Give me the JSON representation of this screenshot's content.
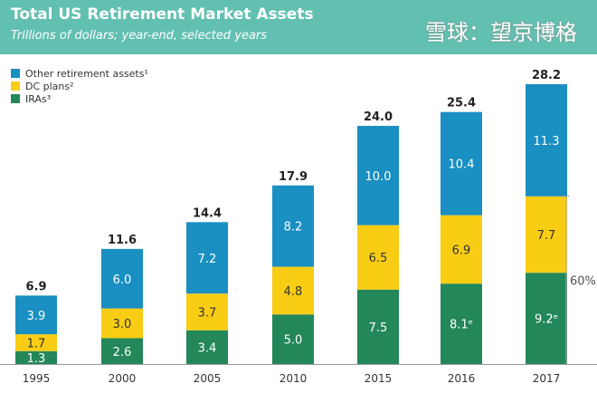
{
  "header": {
    "title": "Total US Retirement Market Assets",
    "subtitle": "Trillions of dollars; year-end, selected years"
  },
  "colors": {
    "header": "#62c0b1",
    "other": "#1a8fc1",
    "dc": "#f8cd14",
    "ira": "#23875a"
  },
  "watermark": "雪球：望京博格",
  "chart_data": {
    "type": "bar",
    "stacked": true,
    "title": "Total US Retirement Market Assets",
    "subtitle": "Trillions of dollars; year-end, selected years",
    "categories": [
      "1995",
      "2000",
      "2005",
      "2010",
      "2015",
      "2016",
      "2017"
    ],
    "series": [
      {
        "name": "IRAs³",
        "key": "ira",
        "values": [
          1.3,
          2.6,
          3.4,
          5.0,
          7.5,
          8.1,
          9.2
        ],
        "labels": [
          "1.3",
          "2.6",
          "3.4",
          "5.0",
          "7.5",
          "8.1ᵉ",
          "9.2ᵉ"
        ]
      },
      {
        "name": "DC plans²",
        "key": "dc",
        "values": [
          1.7,
          3.0,
          3.7,
          4.8,
          6.5,
          6.9,
          7.7
        ],
        "labels": [
          "1.7",
          "3.0",
          "3.7",
          "4.8",
          "6.5",
          "6.9",
          "7.7"
        ]
      },
      {
        "name": "Other retirement assets¹",
        "key": "other",
        "values": [
          3.9,
          6.0,
          7.2,
          8.2,
          10.0,
          10.4,
          11.3
        ],
        "labels": [
          "3.9",
          "6.0",
          "7.2",
          "8.2",
          "10.0",
          "10.4",
          "11.3"
        ]
      }
    ],
    "totals": [
      "6.9",
      "11.6",
      "14.4",
      "17.9",
      "24.0",
      "25.4",
      "28.2"
    ],
    "annotation": "60%",
    "ylim": [
      0,
      28.2
    ],
    "grid": false,
    "legend": "top-left"
  }
}
